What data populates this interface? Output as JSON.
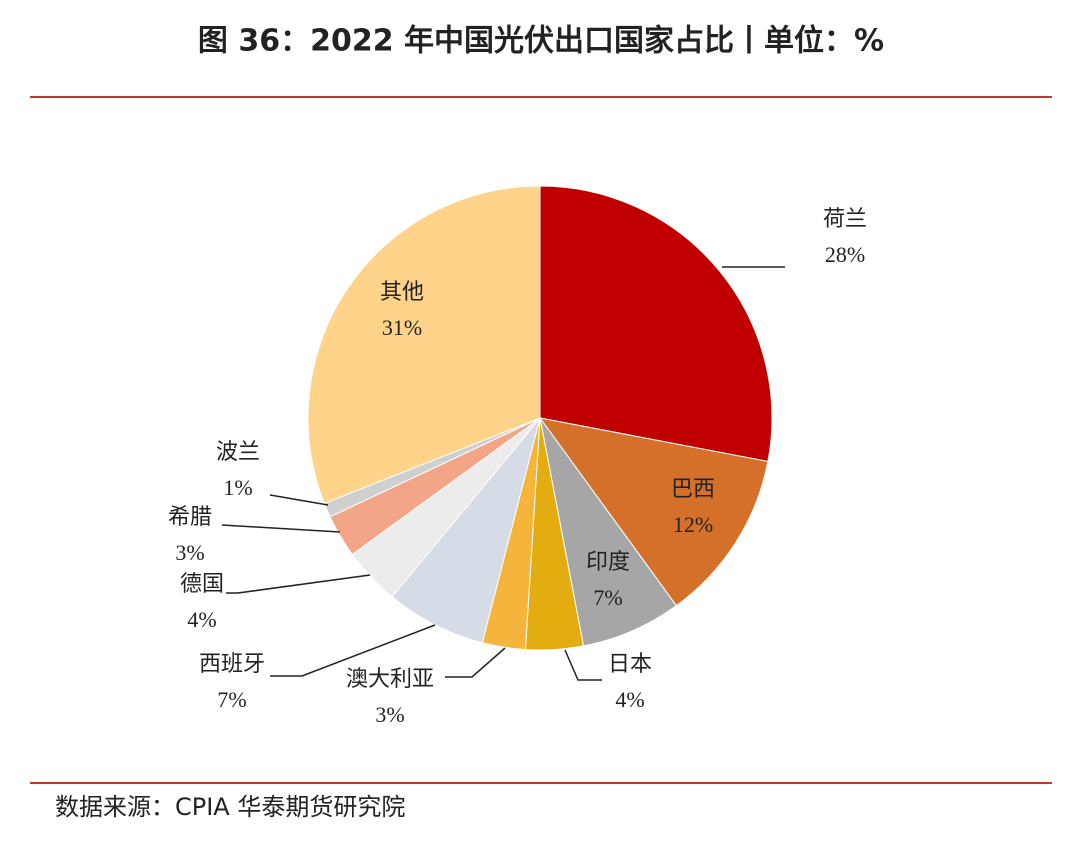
{
  "chart_data": {
    "type": "pie",
    "title": "图 36：2022 年中国光伏出口国家占比丨单位：%",
    "source": "数据来源：CPIA 华泰期货研究院",
    "categories": [
      "荷兰",
      "巴西",
      "印度",
      "日本",
      "澳大利亚",
      "西班牙",
      "德国",
      "希腊",
      "波兰",
      "其他"
    ],
    "values": [
      28,
      12,
      7,
      4,
      3,
      7,
      4,
      3,
      1,
      31
    ],
    "value_labels": [
      "28%",
      "12%",
      "7%",
      "4%",
      "3%",
      "7%",
      "4%",
      "3%",
      "1%",
      "31%"
    ],
    "colors": [
      "#c00000",
      "#d4702a",
      "#a6a6a6",
      "#e3ac10",
      "#f5b43c",
      "#d6dce5",
      "#ececec",
      "#f2a687",
      "#cfcfcf",
      "#ffd48a"
    ]
  }
}
